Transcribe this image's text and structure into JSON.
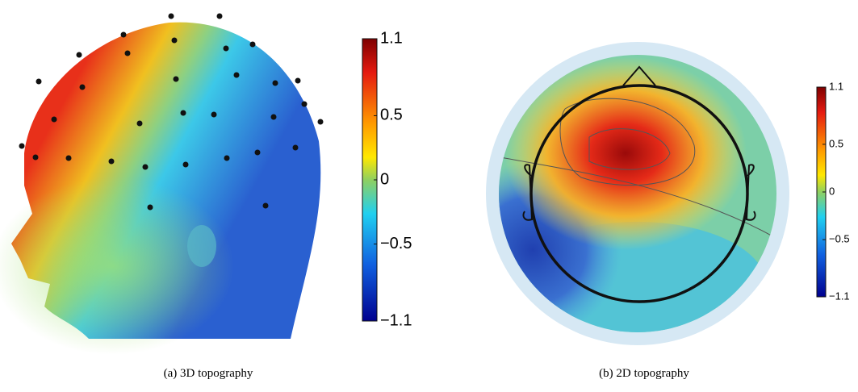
{
  "panels": [
    {
      "caption": "(a) 3D topography",
      "colorbar": {
        "lim": [
          -1.1,
          1.1
        ],
        "ticks": [
          1.1,
          0.5,
          0,
          {
            "value": -0.5,
            "label": "−0.5"
          },
          {
            "value": -1.1,
            "label": "−1.1"
          }
        ]
      }
    },
    {
      "caption": "(b) 2D topography",
      "colorbar": {
        "lim": [
          -1.1,
          1.1
        ],
        "ticks": [
          1.1,
          0.5,
          0,
          {
            "value": -0.5,
            "label": "−0.5"
          },
          {
            "value": -1.1,
            "label": "−1.1"
          }
        ]
      }
    }
  ]
}
